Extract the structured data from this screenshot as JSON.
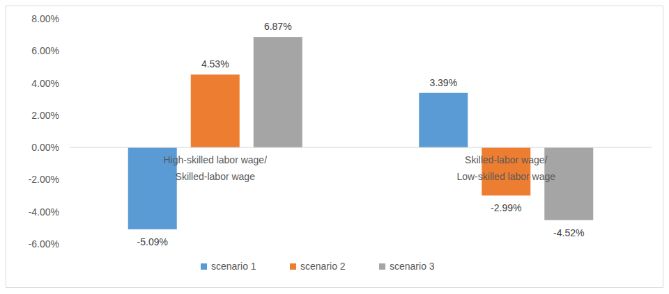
{
  "chart_data": {
    "type": "bar",
    "categories": [
      "High-skilled labor wage/\nSkilled-labor wage",
      "Skilled-labor wage/\nLow-skilled labor wage"
    ],
    "series": [
      {
        "name": "scenario 1",
        "color": "#5b9bd5",
        "values": [
          -5.09,
          3.39
        ],
        "value_labels": [
          "-5.09%",
          "3.39%"
        ]
      },
      {
        "name": "scenario 2",
        "color": "#ed7d31",
        "values": [
          4.53,
          -2.99
        ],
        "value_labels": [
          "4.53%",
          "-2.99%"
        ]
      },
      {
        "name": "scenario 3",
        "color": "#a5a5a5",
        "values": [
          6.87,
          -4.52
        ],
        "value_labels": [
          "6.87%",
          "-4.52%"
        ]
      }
    ],
    "ylim": [
      -6,
      8
    ],
    "yticks": [
      {
        "value": -6,
        "label": "-6.00%"
      },
      {
        "value": -4,
        "label": "-4.00%"
      },
      {
        "value": -2,
        "label": "-2.00%"
      },
      {
        "value": 0,
        "label": "0.00%"
      },
      {
        "value": 2,
        "label": "2.00%"
      },
      {
        "value": 4,
        "label": "4.00%"
      },
      {
        "value": 6,
        "label": "6.00%"
      },
      {
        "value": 8,
        "label": "8.00%"
      }
    ],
    "grid": false,
    "legend": "bottom",
    "data_labels": true
  }
}
